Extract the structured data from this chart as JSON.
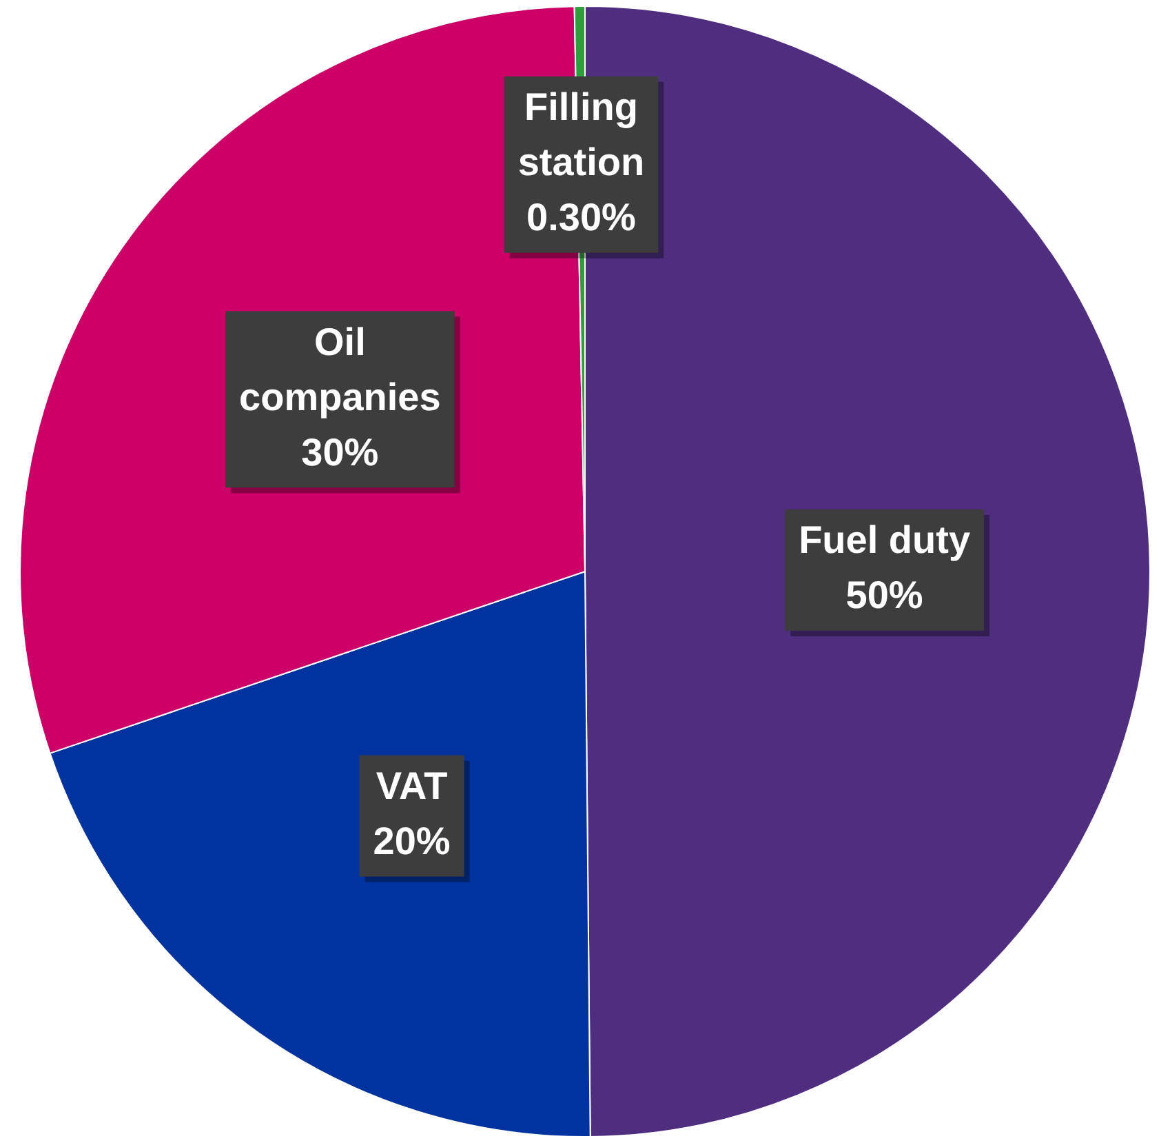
{
  "chart_data": {
    "type": "pie",
    "categories": [
      "Fuel duty",
      "VAT",
      "Oil companies",
      "Filling station"
    ],
    "values": [
      50,
      20,
      30,
      0.3
    ],
    "value_labels": [
      "50%",
      "20%",
      "30%",
      "0.30%"
    ],
    "colors": [
      "#4f2e80",
      "#0033a0",
      "#cc0066",
      "#2e9e3a"
    ],
    "legend": false
  }
}
